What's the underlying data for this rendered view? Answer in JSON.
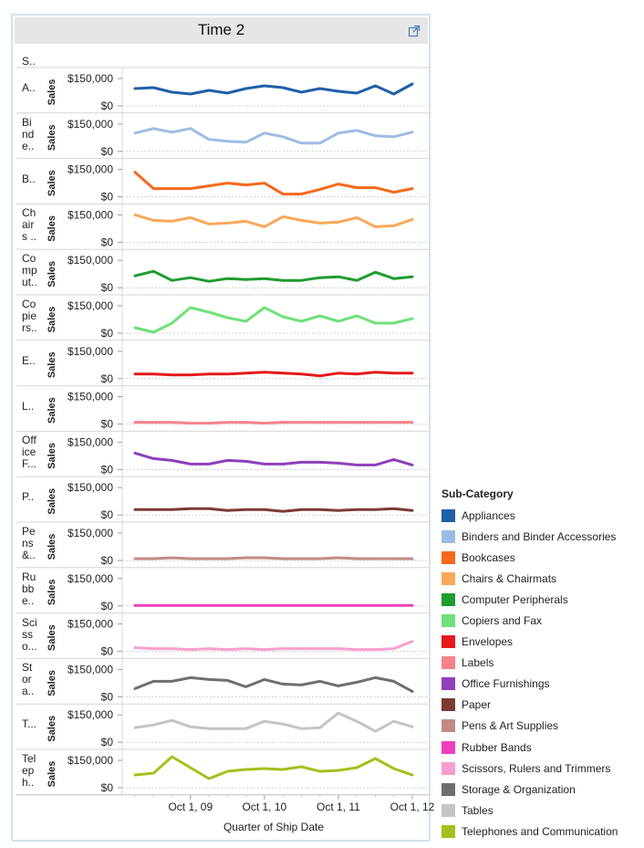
{
  "header": {
    "title": "Time 2",
    "column_header": "S.."
  },
  "legend": {
    "title": "Sub-Category"
  },
  "chart_data": {
    "type": "line",
    "title": "Time 2",
    "xlabel": "Quarter of Ship Date",
    "ylabel": "Sales",
    "x_ticks": [
      {
        "label": "Oct 1, 09",
        "index": 3
      },
      {
        "label": "Oct 1, 10",
        "index": 7
      },
      {
        "label": "Oct 1, 11",
        "index": 11
      },
      {
        "label": "Oct 1, 12",
        "index": 15
      }
    ],
    "y_tick_labels": [
      "$150,000",
      "$0"
    ],
    "y_axis_label_text": "Sales",
    "ylim": [
      0,
      180000
    ],
    "x_count": 16,
    "series": [
      {
        "name": "Appliances",
        "row_label": "A..",
        "color": "#1f5fa8",
        "values": [
          95000,
          100000,
          75000,
          65000,
          85000,
          70000,
          95000,
          110000,
          100000,
          75000,
          95000,
          80000,
          70000,
          110000,
          65000,
          120000
        ]
      },
      {
        "name": "Binders and Binder Accessories",
        "row_label": "Bi\nnd\ne..",
        "color": "#9dbce3",
        "values": [
          100000,
          125000,
          105000,
          125000,
          65000,
          55000,
          50000,
          100000,
          80000,
          45000,
          45000,
          100000,
          115000,
          85000,
          80000,
          105000
        ]
      },
      {
        "name": "Bookcases",
        "row_label": "B..",
        "color": "#f4691c",
        "values": [
          135000,
          45000,
          45000,
          45000,
          60000,
          75000,
          65000,
          75000,
          15000,
          15000,
          40000,
          70000,
          50000,
          50000,
          25000,
          45000
        ]
      },
      {
        "name": "Chairs & Chairmats",
        "row_label": "Ch\nair\ns ..",
        "color": "#f9a95a",
        "values": [
          150000,
          120000,
          115000,
          135000,
          100000,
          105000,
          115000,
          85000,
          140000,
          120000,
          105000,
          110000,
          135000,
          85000,
          90000,
          125000
        ]
      },
      {
        "name": "Computer Peripherals",
        "row_label": "Co\nmp\nut..",
        "color": "#1e9c2d",
        "values": [
          65000,
          90000,
          40000,
          55000,
          35000,
          50000,
          45000,
          50000,
          40000,
          40000,
          55000,
          60000,
          40000,
          85000,
          50000,
          60000
        ]
      },
      {
        "name": "Copiers and Fax",
        "row_label": "Co\npie\nrs..",
        "color": "#6fe07a",
        "values": [
          30000,
          5000,
          55000,
          140000,
          115000,
          85000,
          65000,
          140000,
          90000,
          65000,
          95000,
          65000,
          95000,
          55000,
          55000,
          80000
        ]
      },
      {
        "name": "Envelopes",
        "row_label": "E..",
        "color": "#e51a1a",
        "values": [
          25000,
          25000,
          20000,
          20000,
          25000,
          25000,
          30000,
          35000,
          30000,
          25000,
          15000,
          30000,
          25000,
          35000,
          30000,
          30000
        ]
      },
      {
        "name": "Labels",
        "row_label": "L..",
        "color": "#f7828a",
        "values": [
          10000,
          10000,
          10000,
          5000,
          5000,
          10000,
          10000,
          5000,
          10000,
          10000,
          10000,
          10000,
          10000,
          10000,
          10000,
          10000
        ]
      },
      {
        "name": "Office Furnishings",
        "row_label": "Off\nice\nF...",
        "color": "#8e3fbc",
        "values": [
          90000,
          60000,
          50000,
          30000,
          30000,
          50000,
          45000,
          30000,
          30000,
          40000,
          40000,
          35000,
          25000,
          25000,
          55000,
          25000
        ]
      },
      {
        "name": "Paper",
        "row_label": "P..",
        "color": "#7b3b35",
        "values": [
          30000,
          30000,
          30000,
          35000,
          35000,
          25000,
          30000,
          30000,
          20000,
          30000,
          30000,
          25000,
          30000,
          30000,
          35000,
          25000
        ]
      },
      {
        "name": "Pens & Art Supplies",
        "row_label": "Pe\nns\n&..",
        "color": "#c28b84",
        "values": [
          10000,
          10000,
          15000,
          10000,
          10000,
          10000,
          15000,
          15000,
          10000,
          10000,
          10000,
          15000,
          10000,
          10000,
          10000,
          10000
        ]
      },
      {
        "name": "Rubber Bands",
        "row_label": "Ru\nbb\ne..",
        "color": "#f03fbe",
        "values": [
          3000,
          3000,
          3000,
          3000,
          3000,
          3000,
          3000,
          3000,
          3000,
          3000,
          3000,
          3000,
          3000,
          3000,
          3000,
          3000
        ]
      },
      {
        "name": "Scissors, Rulers and Trimmers",
        "row_label": "Sci\nss\no...",
        "color": "#f99ed0",
        "values": [
          20000,
          15000,
          15000,
          10000,
          15000,
          10000,
          15000,
          10000,
          15000,
          15000,
          15000,
          15000,
          10000,
          10000,
          15000,
          55000
        ]
      },
      {
        "name": "Storage & Organization",
        "row_label": "St\nor\na..",
        "color": "#6f6f6f",
        "values": [
          45000,
          85000,
          85000,
          105000,
          95000,
          90000,
          55000,
          95000,
          70000,
          65000,
          85000,
          60000,
          80000,
          105000,
          85000,
          30000
        ]
      },
      {
        "name": "Tables",
        "row_label": "T...",
        "color": "#c4c4c4",
        "values": [
          80000,
          95000,
          120000,
          85000,
          75000,
          75000,
          75000,
          115000,
          100000,
          75000,
          80000,
          160000,
          115000,
          60000,
          115000,
          85000
        ]
      },
      {
        "name": "Telephones and Communication",
        "row_label": "Tel\nep\nh..",
        "color": "#a6bf1e",
        "values": [
          70000,
          80000,
          170000,
          110000,
          50000,
          90000,
          100000,
          105000,
          100000,
          115000,
          90000,
          95000,
          110000,
          160000,
          105000,
          70000
        ]
      }
    ]
  }
}
